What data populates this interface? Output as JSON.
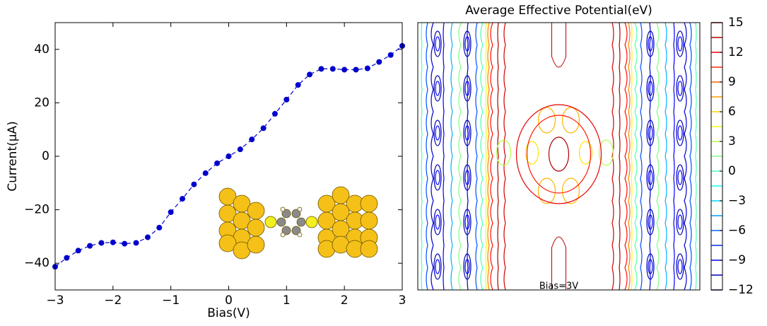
{
  "chart_data": [
    {
      "type": "line",
      "xlabel": "Bias(V)",
      "ylabel": "Current(μA)",
      "x": [
        -3,
        -2.8,
        -2.6,
        -2.4,
        -2.2,
        -2,
        -1.8,
        -1.6,
        -1.4,
        -1.2,
        -1,
        -0.8,
        -0.6,
        -0.4,
        -0.2,
        0,
        0.2,
        0.4,
        0.6,
        0.8,
        1,
        1.2,
        1.4,
        1.6,
        1.8,
        2,
        2.2,
        2.4,
        2.6,
        2.8,
        3
      ],
      "values": [
        -41.3,
        -38,
        -35.3,
        -33.5,
        -32.4,
        -32.2,
        -32.7,
        -32.4,
        -30.3,
        -26.7,
        -20.9,
        -15.9,
        -10.5,
        -6.3,
        -2.6,
        0,
        2.6,
        6.3,
        10.5,
        15.9,
        21.2,
        26.7,
        30.6,
        32.7,
        32.7,
        32.4,
        32.4,
        32.9,
        35.3,
        37.9,
        41.3
      ],
      "color": "#0000cc",
      "xlim": [
        -3,
        3
      ],
      "ylim": [
        -50,
        50
      ],
      "xticks": [
        -3,
        -2,
        -1,
        0,
        1,
        2,
        3
      ],
      "yticks": [
        -40,
        -20,
        0,
        20,
        40
      ]
    },
    {
      "type": "contour",
      "title": "Average Effective Potential(eV)",
      "annotation": "Bias=3V",
      "colormap": "jet",
      "clim": [
        -12,
        15
      ],
      "cticks": [
        -12,
        -9,
        -6,
        -3,
        0,
        3,
        6,
        9,
        12,
        15
      ]
    }
  ]
}
